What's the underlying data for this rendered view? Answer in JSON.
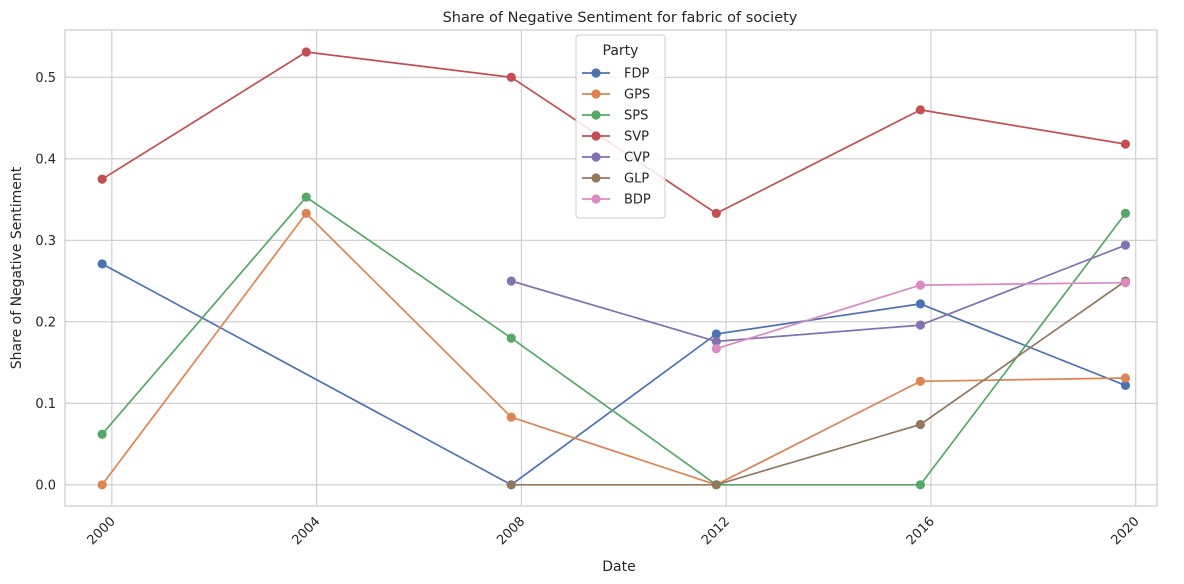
{
  "chart_data": {
    "type": "line",
    "title": "Share of Negative Sentiment for fabric of society",
    "xlabel": "Date",
    "ylabel": "Share of Negative Sentiment",
    "x_ticks": [
      "2000",
      "2004",
      "2008",
      "2012",
      "2016",
      "2020"
    ],
    "y_ticks": [
      "0.0",
      "0.1",
      "0.2",
      "0.3",
      "0.4",
      "0.5"
    ],
    "xlim": [
      "1999-02-01",
      "2020-06-01"
    ],
    "ylim": [
      -0.026,
      0.558
    ],
    "grid": true,
    "legend": {
      "title": "Party",
      "position": "top-center"
    },
    "series": [
      {
        "name": "FDP",
        "color": "#4c72b0",
        "points": [
          [
            "1999-10-24",
            0.271
          ],
          [
            "2007-10-21",
            0.0
          ],
          [
            "2011-10-23",
            0.185
          ],
          [
            "2015-10-18",
            0.222
          ],
          [
            "2019-10-20",
            0.122
          ]
        ]
      },
      {
        "name": "GPS",
        "color": "#dd8452",
        "points": [
          [
            "1999-10-24",
            0.0
          ],
          [
            "2003-10-19",
            0.333
          ],
          [
            "2007-10-21",
            0.083
          ],
          [
            "2011-10-23",
            0.0
          ],
          [
            "2015-10-18",
            0.127
          ],
          [
            "2019-10-20",
            0.131
          ]
        ]
      },
      {
        "name": "SPS",
        "color": "#55a868",
        "points": [
          [
            "1999-10-24",
            0.062
          ],
          [
            "2003-10-19",
            0.353
          ],
          [
            "2007-10-21",
            0.18
          ],
          [
            "2011-10-23",
            0.0
          ],
          [
            "2015-10-18",
            0.0
          ],
          [
            "2019-10-20",
            0.333
          ]
        ]
      },
      {
        "name": "SVP",
        "color": "#c44e52",
        "points": [
          [
            "1999-10-24",
            0.375
          ],
          [
            "2003-10-19",
            0.531
          ],
          [
            "2007-10-21",
            0.5
          ],
          [
            "2011-10-23",
            0.333
          ],
          [
            "2015-10-18",
            0.46
          ],
          [
            "2019-10-20",
            0.418
          ]
        ]
      },
      {
        "name": "CVP",
        "color": "#8172b3",
        "points": [
          [
            "2007-10-21",
            0.25
          ],
          [
            "2011-10-23",
            0.176
          ],
          [
            "2015-10-18",
            0.196
          ],
          [
            "2019-10-20",
            0.294
          ]
        ]
      },
      {
        "name": "GLP",
        "color": "#937860",
        "points": [
          [
            "2007-10-21",
            0.0
          ],
          [
            "2011-10-23",
            0.0
          ],
          [
            "2015-10-18",
            0.074
          ],
          [
            "2019-10-20",
            0.25
          ]
        ]
      },
      {
        "name": "BDP",
        "color": "#da8bc3",
        "points": [
          [
            "2011-10-23",
            0.167
          ],
          [
            "2015-10-18",
            0.245
          ],
          [
            "2019-10-20",
            0.248
          ]
        ]
      }
    ]
  }
}
